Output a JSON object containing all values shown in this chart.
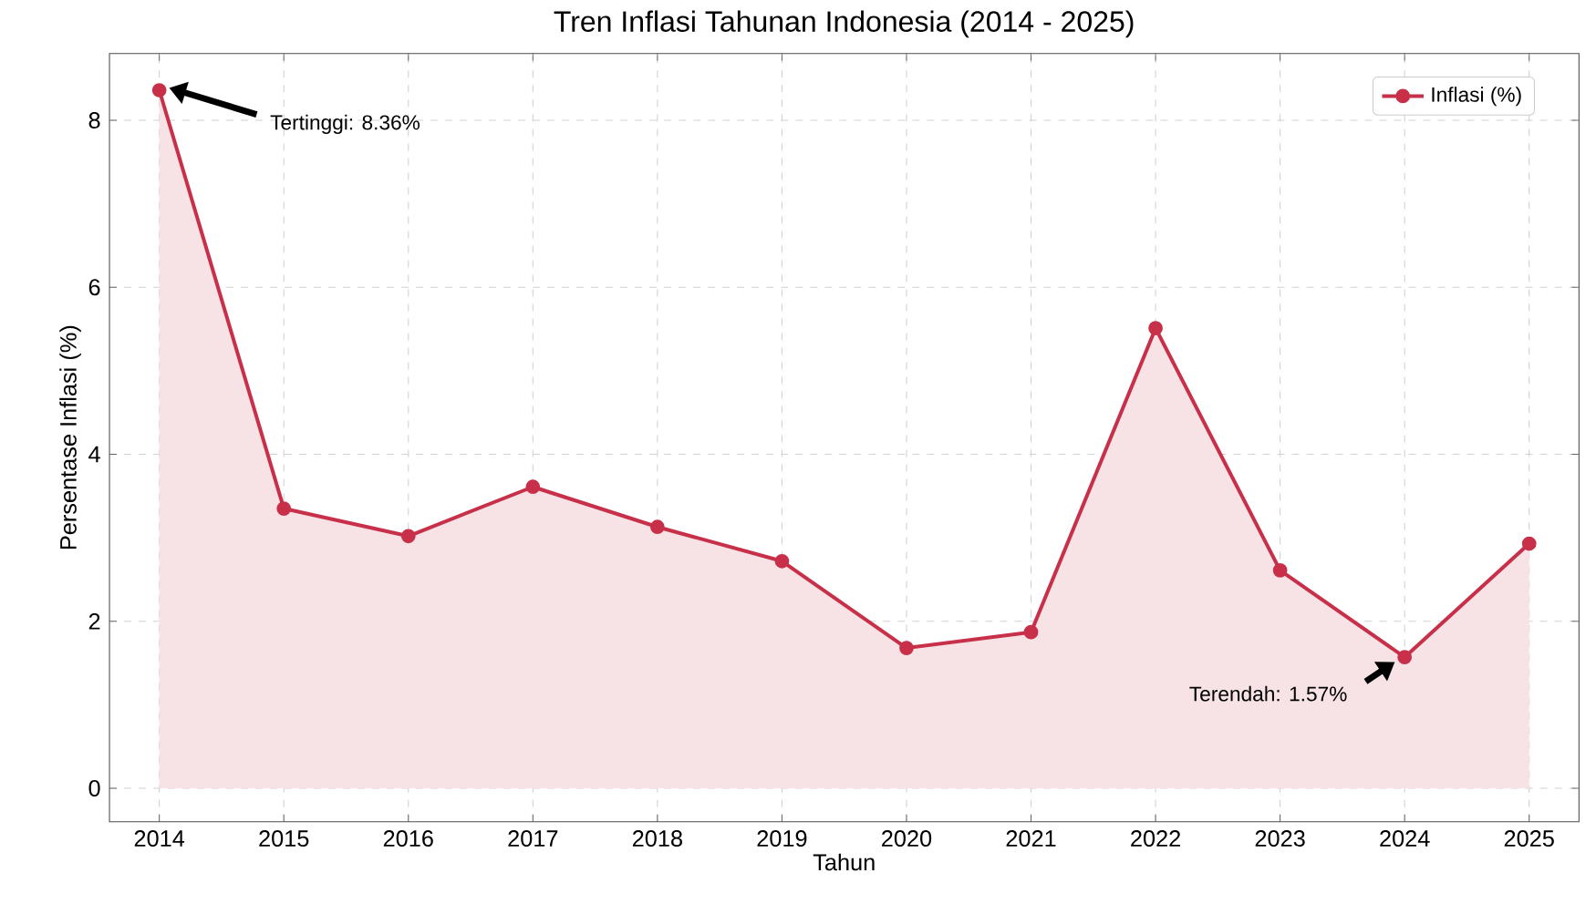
{
  "chart_data": {
    "type": "area",
    "title": "Tren Inflasi Tahunan Indonesia (2014 - 2025)",
    "xlabel": "Tahun",
    "ylabel": "Persentase Inflasi (%)",
    "x": [
      2014,
      2015,
      2016,
      2017,
      2018,
      2019,
      2020,
      2021,
      2022,
      2023,
      2024,
      2025
    ],
    "series": [
      {
        "name": "Inflasi (%)",
        "color": "#c8304a",
        "values": [
          8.36,
          3.35,
          3.02,
          3.61,
          3.13,
          2.72,
          1.68,
          1.87,
          5.51,
          2.61,
          1.57,
          2.93
        ]
      }
    ],
    "xlim": [
      2013.6,
      2025.4
    ],
    "xticks": [
      2014,
      2015,
      2016,
      2017,
      2018,
      2019,
      2020,
      2021,
      2022,
      2023,
      2024,
      2025
    ],
    "ylim": [
      -0.4,
      8.8
    ],
    "yticks": [
      0,
      2,
      4,
      6,
      8
    ],
    "grid": true,
    "legend": "top right",
    "marker": "circle",
    "line_style": "solid",
    "annotations": [
      "Tertinggi: 8.36%",
      "Terendah: 1.57%"
    ]
  }
}
